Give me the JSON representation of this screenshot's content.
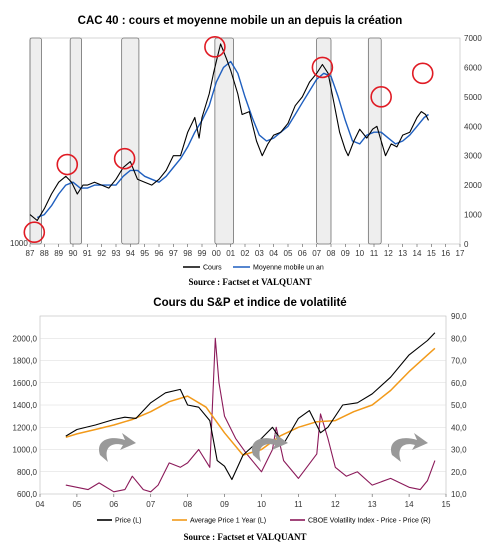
{
  "chart_data": [
    {
      "type": "line",
      "title": "CAC 40 : cours et moyenne mobile un an depuis la création",
      "x_ticks": [
        "87",
        "88",
        "89",
        "90",
        "91",
        "92",
        "93",
        "94",
        "95",
        "96",
        "97",
        "98",
        "99",
        "00",
        "01",
        "02",
        "03",
        "04",
        "05",
        "06",
        "07",
        "08",
        "09",
        "10",
        "11",
        "12",
        "13",
        "14",
        "15",
        "16",
        "17"
      ],
      "y_right_ticks": [
        "0",
        "1000",
        "2000",
        "3000",
        "4000",
        "5000",
        "6000",
        "7000"
      ],
      "y_left_label": "1000",
      "ylim": [
        0,
        7000
      ],
      "xlim": [
        1987,
        2017
      ],
      "series": [
        {
          "name": "Cours",
          "color": "#000000",
          "x": [
            1987.0,
            1987.5,
            1988.0,
            1988.5,
            1989.0,
            1989.5,
            1989.9,
            1990.3,
            1990.7,
            1991.0,
            1991.5,
            1992.0,
            1992.5,
            1993.0,
            1993.5,
            1994.0,
            1994.5,
            1995.0,
            1995.5,
            1996.0,
            1996.5,
            1997.0,
            1997.5,
            1998.0,
            1998.5,
            1998.8,
            1999.0,
            1999.5,
            1999.8,
            2000.0,
            2000.3,
            2000.7,
            2001.0,
            2001.5,
            2001.8,
            2002.3,
            2002.8,
            2003.2,
            2003.6,
            2004.0,
            2004.5,
            2005.0,
            2005.5,
            2006.0,
            2006.5,
            2007.0,
            2007.4,
            2007.8,
            2008.2,
            2008.6,
            2009.0,
            2009.2,
            2009.6,
            2010.0,
            2010.5,
            2010.9,
            2011.2,
            2011.5,
            2011.8,
            2012.2,
            2012.6,
            2013.0,
            2013.5,
            2014.0,
            2014.3,
            2014.6,
            2014.8
          ],
          "y": [
            1000,
            800,
            1200,
            1700,
            2100,
            2300,
            2100,
            1700,
            2000,
            2000,
            2100,
            2000,
            1900,
            2200,
            2600,
            2800,
            2200,
            2100,
            2000,
            2200,
            2500,
            3000,
            3000,
            3800,
            4300,
            3600,
            4300,
            5100,
            5800,
            6200,
            6800,
            6300,
            5900,
            5100,
            4400,
            4500,
            3500,
            3000,
            3400,
            3700,
            3800,
            4100,
            4700,
            5000,
            5500,
            5800,
            6100,
            5800,
            4800,
            3800,
            3200,
            3000,
            3500,
            3900,
            3600,
            3900,
            4000,
            3500,
            3000,
            3400,
            3300,
            3700,
            3800,
            4300,
            4500,
            4400,
            4200
          ]
        },
        {
          "name": "Moyenne mobile un an",
          "color": "#1f5fbf",
          "x": [
            1987.5,
            1988.0,
            1988.5,
            1989.0,
            1989.5,
            1990.0,
            1990.5,
            1991.0,
            1991.5,
            1992.0,
            1992.5,
            1993.0,
            1993.5,
            1994.0,
            1994.5,
            1995.0,
            1995.5,
            1996.0,
            1996.5,
            1997.0,
            1997.5,
            1998.0,
            1998.5,
            1999.0,
            1999.5,
            2000.0,
            2000.5,
            2001.0,
            2001.5,
            2002.0,
            2002.5,
            2003.0,
            2003.5,
            2004.0,
            2004.5,
            2005.0,
            2005.5,
            2006.0,
            2006.5,
            2007.0,
            2007.5,
            2008.0,
            2008.5,
            2009.0,
            2009.5,
            2010.0,
            2010.5,
            2011.0,
            2011.5,
            2012.0,
            2012.5,
            2013.0,
            2013.5,
            2014.0,
            2014.5,
            2014.8
          ],
          "y": [
            900,
            1000,
            1300,
            1700,
            2000,
            2100,
            1900,
            1900,
            2000,
            2000,
            2000,
            2000,
            2300,
            2500,
            2500,
            2300,
            2200,
            2100,
            2300,
            2600,
            2900,
            3300,
            3800,
            4200,
            4700,
            5500,
            6000,
            6200,
            5800,
            5000,
            4300,
            3700,
            3500,
            3600,
            3800,
            4000,
            4400,
            4800,
            5200,
            5600,
            5800,
            5700,
            5000,
            4200,
            3500,
            3400,
            3700,
            3800,
            3800,
            3600,
            3400,
            3500,
            3700,
            4000,
            4300,
            4400
          ]
        }
      ],
      "legend": [
        "Cours",
        "Moyenne mobile un an"
      ],
      "legend_position": "bottom"
    },
    {
      "type": "line",
      "title": "Cours du S&P et indice de volatilité",
      "x_ticks": [
        "04",
        "05",
        "06",
        "07",
        "08",
        "09",
        "10",
        "11",
        "12",
        "13",
        "14",
        "15"
      ],
      "y_left_ticks": [
        "600,0",
        "800,0",
        "1000,0",
        "1200,0",
        "1400,0",
        "1600,0",
        "1800,0",
        "2000,0"
      ],
      "y_right_ticks": [
        "10,0",
        "20,0",
        "30,0",
        "40,0",
        "50,0",
        "60,0",
        "70,0",
        "80,0",
        "90,0"
      ],
      "ylim_left": [
        600,
        2200
      ],
      "ylim_right": [
        10,
        90
      ],
      "xlim": [
        2004,
        2015
      ],
      "series": [
        {
          "name": "Price (L)",
          "color": "#000000",
          "axis": "left",
          "x": [
            2004.7,
            2005.0,
            2005.5,
            2006.0,
            2006.3,
            2006.6,
            2007.0,
            2007.4,
            2007.8,
            2008.0,
            2008.3,
            2008.6,
            2008.8,
            2009.0,
            2009.2,
            2009.5,
            2010.0,
            2010.3,
            2010.6,
            2011.0,
            2011.3,
            2011.6,
            2011.8,
            2012.2,
            2012.6,
            2013.0,
            2013.5,
            2014.0,
            2014.5,
            2014.7
          ],
          "y": [
            1120,
            1180,
            1220,
            1270,
            1290,
            1280,
            1420,
            1510,
            1540,
            1400,
            1380,
            1260,
            900,
            850,
            730,
            950,
            1100,
            1200,
            1050,
            1280,
            1350,
            1150,
            1200,
            1400,
            1420,
            1500,
            1650,
            1850,
            1980,
            2050
          ]
        },
        {
          "name": "Average Price 1 Year (L)",
          "color": "#f29a1a",
          "axis": "left",
          "x": [
            2004.7,
            2005.0,
            2005.5,
            2006.0,
            2006.5,
            2007.0,
            2007.5,
            2008.0,
            2008.5,
            2009.0,
            2009.5,
            2010.0,
            2010.5,
            2011.0,
            2011.5,
            2012.0,
            2012.5,
            2013.0,
            2013.5,
            2014.0,
            2014.5,
            2014.7
          ],
          "y": [
            1110,
            1140,
            1180,
            1220,
            1270,
            1340,
            1430,
            1480,
            1380,
            1150,
            950,
            1000,
            1120,
            1200,
            1250,
            1260,
            1340,
            1400,
            1530,
            1700,
            1850,
            1910
          ]
        },
        {
          "name": "CBOE Volatility Index - Price - Price (R)",
          "color": "#8b1a5a",
          "axis": "right",
          "x": [
            2004.7,
            2005.0,
            2005.3,
            2005.6,
            2006.0,
            2006.3,
            2006.5,
            2006.8,
            2007.0,
            2007.2,
            2007.5,
            2007.8,
            2008.0,
            2008.3,
            2008.6,
            2008.75,
            2008.85,
            2009.0,
            2009.3,
            2009.6,
            2010.0,
            2010.3,
            2010.4,
            2010.6,
            2011.0,
            2011.5,
            2011.6,
            2011.8,
            2012.0,
            2012.3,
            2012.6,
            2013.0,
            2013.5,
            2014.0,
            2014.3,
            2014.5,
            2014.7
          ],
          "y": [
            14,
            13,
            12,
            15,
            11,
            12,
            18,
            12,
            11,
            14,
            24,
            22,
            24,
            30,
            22,
            80,
            60,
            45,
            35,
            28,
            20,
            30,
            40,
            25,
            17,
            28,
            46,
            35,
            22,
            18,
            20,
            14,
            17,
            13,
            12,
            16,
            25
          ]
        }
      ],
      "legend": [
        "Price (L)",
        "Average Price 1 Year (L)",
        "CBOE Volatility Index - Price - Price (R)"
      ],
      "legend_position": "bottom"
    }
  ],
  "source": "Source : Factset et VALQUANT",
  "colors": {
    "highlight_circle": "#e01b24",
    "shaded_period": "#e0e0e0",
    "arrow": "#888888"
  }
}
